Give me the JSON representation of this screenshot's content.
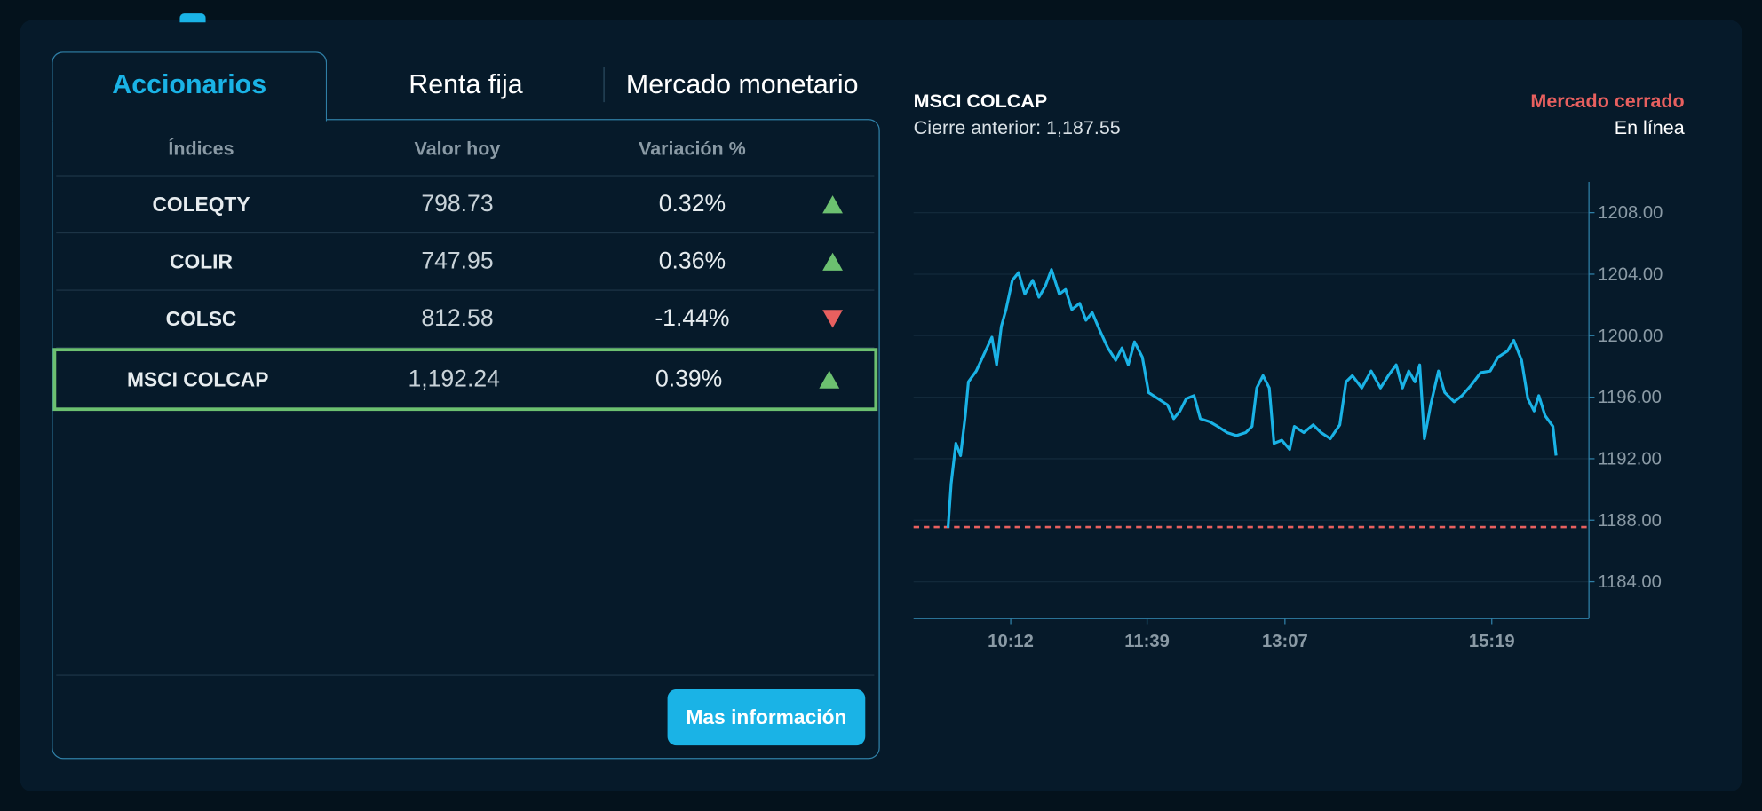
{
  "tabs": {
    "items": [
      "Accionarios",
      "Renta fija",
      "Mercado monetario"
    ],
    "active": 0
  },
  "table": {
    "headers": [
      "Índices",
      "Valor hoy",
      "Variación %"
    ],
    "rows": [
      [
        "COLEQTY",
        "798.73",
        "0.32%",
        "up"
      ],
      [
        "COLIR",
        "747.95",
        "0.36%",
        "up"
      ],
      [
        "COLSC",
        "812.58",
        "-1.44%",
        "down"
      ],
      [
        "MSCI COLCAP",
        "1,192.24",
        "0.39%",
        "up"
      ]
    ],
    "selected_row": 3,
    "arrow_colors": {
      "up": "#6cc070",
      "down": "#e8605f"
    }
  },
  "button": "Mas información",
  "status": {
    "market": "Mercado cerrado",
    "market_color": "#e8605f",
    "connection": "En línea"
  },
  "chart_data": {
    "type": "line",
    "title": "MSCI COLCAP",
    "subtitle": "Cierre anterior: 1,187.55",
    "color": "#1ab3e6",
    "reference_line": {
      "value": 1187.55,
      "color": "#e8605f"
    },
    "x": [
      572,
      574,
      577,
      580,
      583,
      585,
      590,
      595,
      600,
      603,
      606,
      609,
      613,
      617,
      621,
      626,
      630,
      634,
      638,
      643,
      647,
      651,
      656,
      660,
      664,
      669,
      674,
      679,
      683,
      687,
      691,
      696,
      700,
      706,
      712,
      716,
      720,
      724,
      729,
      733,
      739,
      744,
      750,
      756,
      762,
      766,
      769,
      773,
      777,
      780,
      785,
      790,
      793,
      799,
      805,
      810,
      816,
      822,
      826,
      830,
      836,
      842,
      848,
      853,
      858,
      862,
      866,
      870,
      873,
      876,
      880,
      885,
      889,
      895,
      900,
      906,
      912,
      918,
      923,
      929,
      933,
      938,
      942,
      946,
      949,
      953,
      958,
      960
    ],
    "values": [
      1187.5,
      1190.4,
      1193.0,
      1192.2,
      1194.8,
      1197.0,
      1197.7,
      1198.8,
      1199.9,
      1198.1,
      1200.6,
      1201.7,
      1203.6,
      1204.1,
      1202.7,
      1203.6,
      1202.5,
      1203.2,
      1204.3,
      1202.7,
      1203.0,
      1201.7,
      1202.1,
      1201.0,
      1201.5,
      1200.3,
      1199.2,
      1198.4,
      1199.2,
      1198.1,
      1199.6,
      1198.6,
      1196.3,
      1195.9,
      1195.5,
      1194.6,
      1195.1,
      1195.9,
      1196.1,
      1194.6,
      1194.4,
      1194.1,
      1193.7,
      1193.5,
      1193.7,
      1194.1,
      1196.6,
      1197.4,
      1196.6,
      1193.0,
      1193.2,
      1192.6,
      1194.1,
      1193.7,
      1194.2,
      1193.7,
      1193.3,
      1194.2,
      1197.0,
      1197.4,
      1196.6,
      1197.7,
      1196.6,
      1197.4,
      1198.1,
      1196.6,
      1197.7,
      1197.0,
      1198.1,
      1193.3,
      1195.5,
      1197.7,
      1196.3,
      1195.7,
      1196.1,
      1196.8,
      1197.6,
      1197.7,
      1198.6,
      1199.0,
      1199.7,
      1198.4,
      1195.9,
      1195.1,
      1196.1,
      1194.8,
      1194.1,
      1192.2
    ],
    "xlim": [
      550,
      981
    ],
    "xticks": [
      {
        "value": 612,
        "label": "10:12"
      },
      {
        "value": 699,
        "label": "11:39"
      },
      {
        "value": 787,
        "label": "13:07"
      },
      {
        "value": 919,
        "label": "15:19"
      }
    ],
    "ylim": [
      1181.6,
      1210
    ],
    "yticks": [
      {
        "value": 1184,
        "label": "1184.00"
      },
      {
        "value": 1188,
        "label": "1188.00"
      },
      {
        "value": 1192,
        "label": "1192.00"
      },
      {
        "value": 1196,
        "label": "1196.00"
      },
      {
        "value": 1200,
        "label": "1200.00"
      },
      {
        "value": 1204,
        "label": "1204.00"
      },
      {
        "value": 1208,
        "label": "1208.00"
      }
    ],
    "grid": true
  }
}
